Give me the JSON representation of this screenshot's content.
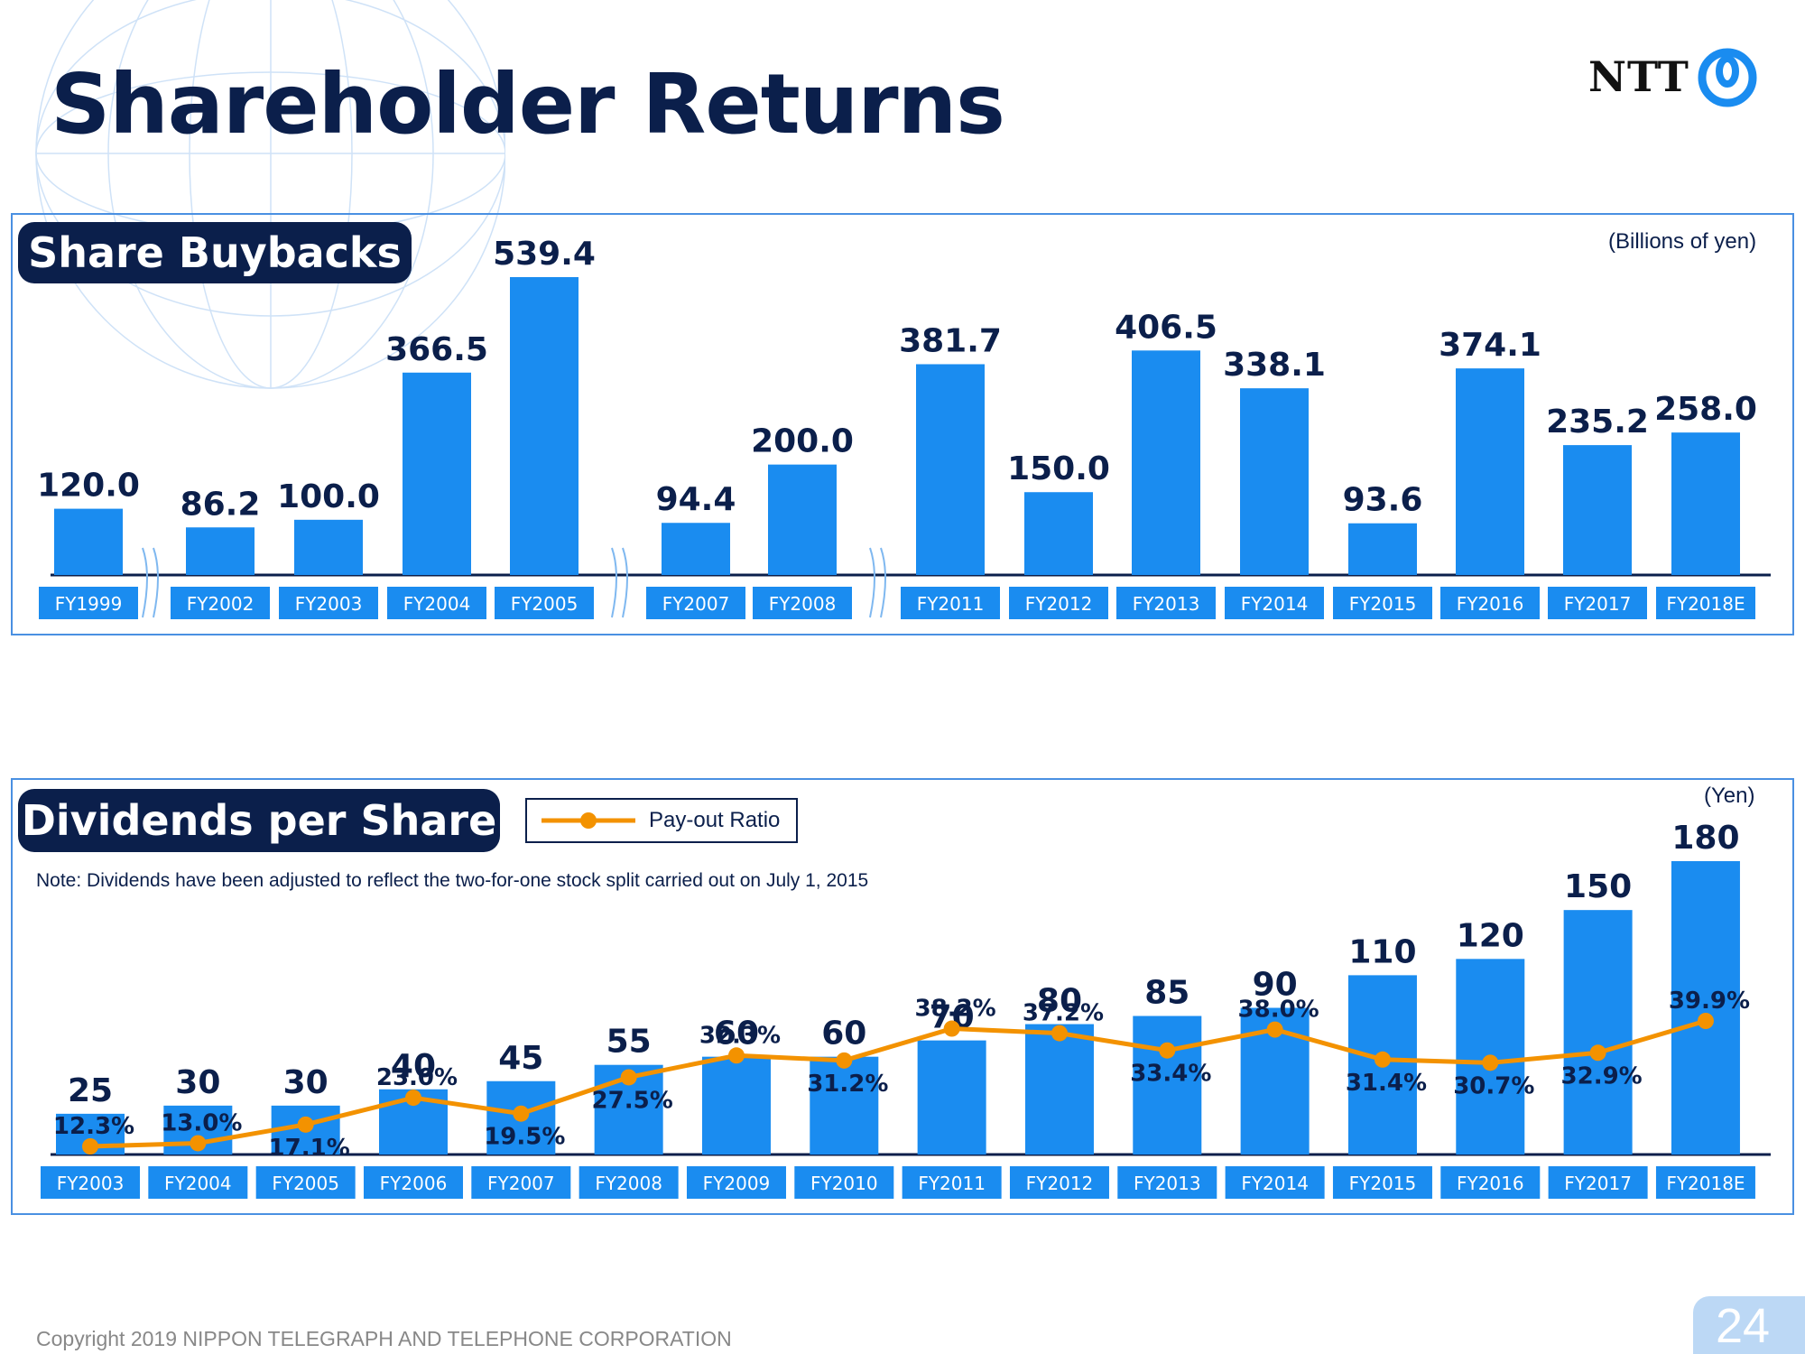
{
  "page": {
    "title": "Shareholder Returns",
    "logo_text": "NTT",
    "copyright": "Copyright 2019 NIPPON TELEGRAPH AND TELEPHONE CORPORATION",
    "page_number": "24"
  },
  "colors": {
    "bar": "#1a8cf0",
    "line": "#f39200",
    "navy": "#0b1f4b",
    "accent_border": "#4a90e2"
  },
  "chart_data": [
    {
      "type": "bar",
      "title": "Share Buybacks",
      "unit_label": "(Billions of yen)",
      "categories": [
        "FY1999",
        "FY2002",
        "FY2003",
        "FY2004",
        "FY2005",
        "FY2007",
        "FY2008",
        "FY2011",
        "FY2012",
        "FY2013",
        "FY2014",
        "FY2015",
        "FY2016",
        "FY2017",
        "FY2018E"
      ],
      "values": [
        120.0,
        86.2,
        100.0,
        366.5,
        539.4,
        94.4,
        200.0,
        381.7,
        150.0,
        406.5,
        338.1,
        93.6,
        374.1,
        235.2,
        258.0
      ],
      "value_labels": [
        "120.0",
        "86.2",
        "100.0",
        "366.5",
        "539.4",
        "94.4",
        "200.0",
        "381.7",
        "150.0",
        "406.5",
        "338.1",
        "93.6",
        "374.1",
        "235.2",
        "258.0"
      ],
      "axis_breaks_after": [
        "FY1999",
        "FY2005",
        "FY2008"
      ],
      "ylim": [
        0,
        570
      ],
      "grid": false
    },
    {
      "type": "bar",
      "title": "Dividends per Share",
      "unit_label": "(Yen)",
      "note": "Note: Dividends have been adjusted to reflect the two-for-one stock split carried out on July 1, 2015",
      "legend": "Pay-out Ratio",
      "categories": [
        "FY2003",
        "FY2004",
        "FY2005",
        "FY2006",
        "FY2007",
        "FY2008",
        "FY2009",
        "FY2010",
        "FY2011",
        "FY2012",
        "FY2013",
        "FY2014",
        "FY2015",
        "FY2016",
        "FY2017",
        "FY2018E"
      ],
      "values": [
        25,
        30,
        30,
        40,
        45,
        55,
        60,
        60,
        70,
        80,
        85,
        90,
        110,
        120,
        150,
        180
      ],
      "value_labels": [
        "25",
        "30",
        "30",
        "40",
        "45",
        "55",
        "60",
        "60",
        "70",
        "80",
        "85",
        "90",
        "110",
        "120",
        "150",
        "180"
      ],
      "series": [
        {
          "name": "Pay-out Ratio",
          "type": "line",
          "values": [
            12.3,
            13.0,
            17.1,
            23.0,
            19.5,
            27.5,
            32.3,
            31.2,
            38.2,
            37.2,
            33.4,
            38.0,
            31.4,
            30.7,
            32.9,
            39.9
          ],
          "labels": [
            "12.3%",
            "13.0%",
            "17.1%",
            "23.0%",
            "19.5%",
            "27.5%",
            "32.3%",
            "31.2%",
            "38.2%",
            "37.2%",
            "33.4%",
            "38.0%",
            "31.4%",
            "30.7%",
            "32.9%",
            "39.9%"
          ]
        }
      ],
      "ylim": [
        0,
        190
      ],
      "grid": false
    }
  ]
}
